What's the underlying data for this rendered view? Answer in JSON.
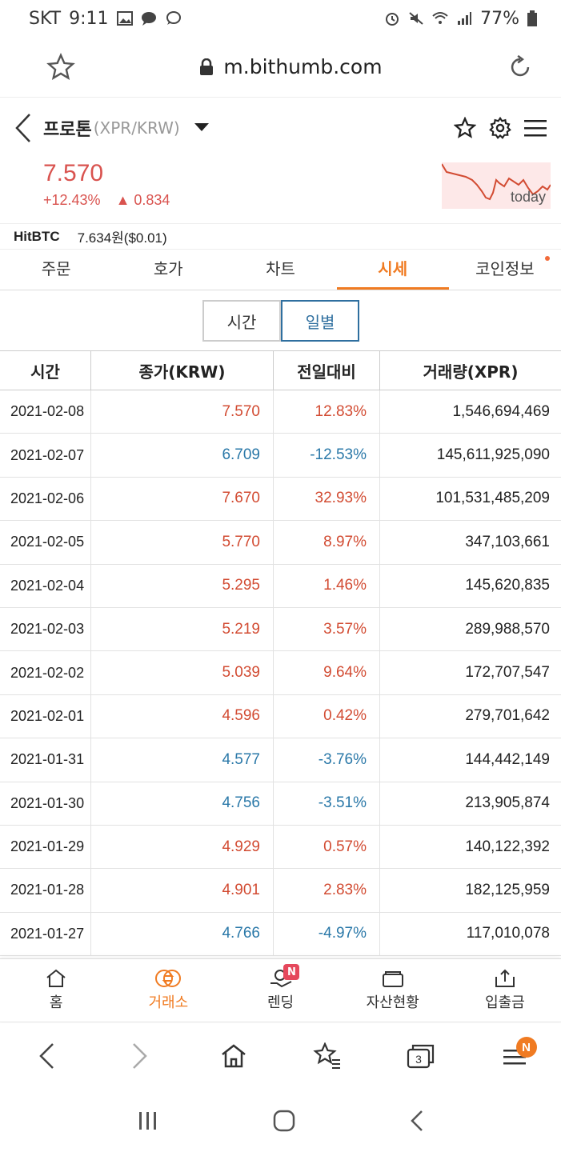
{
  "status": {
    "carrier": "SKT",
    "time": "9:11",
    "battery": "77%"
  },
  "browser": {
    "url": "m.bithumb.com"
  },
  "header": {
    "coin_name": "프로톤",
    "pair": "(XPR/KRW)"
  },
  "price": {
    "current": "7.570",
    "change_pct": "+12.43%",
    "change_abs": "▲ 0.834",
    "sparkline_label": "today"
  },
  "reference": {
    "exchange": "HitBTC",
    "value": "7.634원($0.01)"
  },
  "tabs": [
    {
      "label": "주문"
    },
    {
      "label": "호가"
    },
    {
      "label": "차트"
    },
    {
      "label": "시세"
    },
    {
      "label": "코인정보"
    }
  ],
  "segment": {
    "time_label": "시간",
    "daily_label": "일별"
  },
  "table": {
    "headers": [
      "시간",
      "종가(KRW)",
      "전일대비",
      "거래량(XPR)"
    ],
    "rows": [
      {
        "date": "2021-02-08",
        "close": "7.570",
        "change": "12.83%",
        "volume": "1,546,694,469",
        "dir": "up"
      },
      {
        "date": "2021-02-07",
        "close": "6.709",
        "change": "-12.53%",
        "volume": "145,611,925,090",
        "dir": "down"
      },
      {
        "date": "2021-02-06",
        "close": "7.670",
        "change": "32.93%",
        "volume": "101,531,485,209",
        "dir": "up"
      },
      {
        "date": "2021-02-05",
        "close": "5.770",
        "change": "8.97%",
        "volume": "347,103,661",
        "dir": "up"
      },
      {
        "date": "2021-02-04",
        "close": "5.295",
        "change": "1.46%",
        "volume": "145,620,835",
        "dir": "up"
      },
      {
        "date": "2021-02-03",
        "close": "5.219",
        "change": "3.57%",
        "volume": "289,988,570",
        "dir": "up"
      },
      {
        "date": "2021-02-02",
        "close": "5.039",
        "change": "9.64%",
        "volume": "172,707,547",
        "dir": "up"
      },
      {
        "date": "2021-02-01",
        "close": "4.596",
        "change": "0.42%",
        "volume": "279,701,642",
        "dir": "up"
      },
      {
        "date": "2021-01-31",
        "close": "4.577",
        "change": "-3.76%",
        "volume": "144,442,149",
        "dir": "down"
      },
      {
        "date": "2021-01-30",
        "close": "4.756",
        "change": "-3.51%",
        "volume": "213,905,874",
        "dir": "down"
      },
      {
        "date": "2021-01-29",
        "close": "4.929",
        "change": "0.57%",
        "volume": "140,122,392",
        "dir": "up"
      },
      {
        "date": "2021-01-28",
        "close": "4.901",
        "change": "2.83%",
        "volume": "182,125,959",
        "dir": "up"
      },
      {
        "date": "2021-01-27",
        "close": "4.766",
        "change": "-4.97%",
        "volume": "117,010,078",
        "dir": "down"
      }
    ]
  },
  "app_nav": [
    {
      "label": "홈"
    },
    {
      "label": "거래소"
    },
    {
      "label": "렌딩",
      "badge": "N"
    },
    {
      "label": "자산현황"
    },
    {
      "label": "입출금"
    }
  ],
  "browser_nav": {
    "tabs_count": "3",
    "menu_badge": "N"
  },
  "colors": {
    "accent": "#f07b22",
    "up": "#d24b32",
    "down": "#2a78a8",
    "active_segment": "#2f6f9f"
  }
}
